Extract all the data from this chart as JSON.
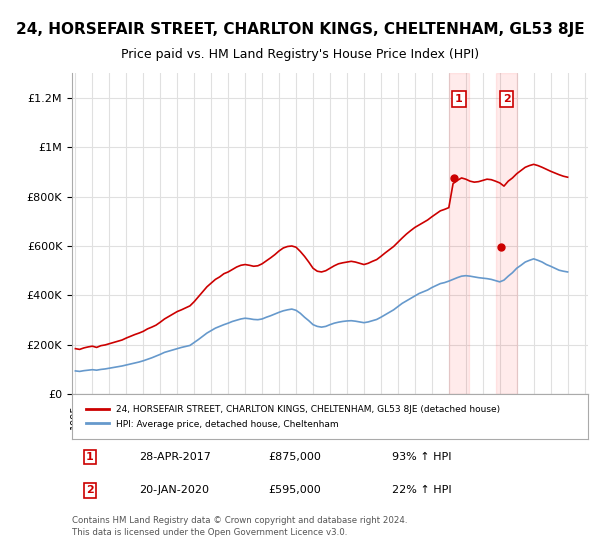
{
  "title": "24, HORSEFAIR STREET, CHARLTON KINGS, CHELTENHAM, GL53 8JE",
  "subtitle": "Price paid vs. HM Land Registry's House Price Index (HPI)",
  "xlabel": "",
  "ylabel": "",
  "yticks": [
    0,
    200000,
    400000,
    600000,
    800000,
    1000000,
    1200000
  ],
  "ytick_labels": [
    "£0",
    "£200K",
    "£400K",
    "£600K",
    "£800K",
    "£1M",
    "£1.2M"
  ],
  "ylim": [
    0,
    1300000
  ],
  "title_fontsize": 11,
  "subtitle_fontsize": 9,
  "background_color": "#ffffff",
  "plot_bg_color": "#ffffff",
  "grid_color": "#e0e0e0",
  "red_color": "#cc0000",
  "blue_color": "#6699cc",
  "marker1_date_x": 2017.32,
  "marker1_price": 875000,
  "marker1_label": "1",
  "marker2_date_x": 2020.05,
  "marker2_price": 595000,
  "marker2_label": "2",
  "legend1_text": "24, HORSEFAIR STREET, CHARLTON KINGS, CHELTENHAM, GL53 8JE (detached house)",
  "legend2_text": "HPI: Average price, detached house, Cheltenham",
  "table_row1": [
    "1",
    "28-APR-2017",
    "£875,000",
    "93% ↑ HPI"
  ],
  "table_row2": [
    "2",
    "20-JAN-2020",
    "£595,000",
    "22% ↑ HPI"
  ],
  "footnote": "Contains HM Land Registry data © Crown copyright and database right 2024.\nThis data is licensed under the Open Government Licence v3.0.",
  "xtick_years": [
    1995,
    1996,
    1997,
    1998,
    1999,
    2000,
    2001,
    2002,
    2003,
    2004,
    2005,
    2006,
    2007,
    2008,
    2009,
    2010,
    2011,
    2012,
    2013,
    2014,
    2015,
    2016,
    2017,
    2018,
    2019,
    2020,
    2021,
    2022,
    2023,
    2024,
    2025
  ],
  "red_x": [
    1995.0,
    1995.25,
    1995.5,
    1995.75,
    1996.0,
    1996.25,
    1996.5,
    1996.75,
    1997.0,
    1997.25,
    1997.5,
    1997.75,
    1998.0,
    1998.25,
    1998.5,
    1998.75,
    1999.0,
    1999.25,
    1999.5,
    1999.75,
    2000.0,
    2000.25,
    2000.5,
    2000.75,
    2001.0,
    2001.25,
    2001.5,
    2001.75,
    2002.0,
    2002.25,
    2002.5,
    2002.75,
    2003.0,
    2003.25,
    2003.5,
    2003.75,
    2004.0,
    2004.25,
    2004.5,
    2004.75,
    2005.0,
    2005.25,
    2005.5,
    2005.75,
    2006.0,
    2006.25,
    2006.5,
    2006.75,
    2007.0,
    2007.25,
    2007.5,
    2007.75,
    2008.0,
    2008.25,
    2008.5,
    2008.75,
    2009.0,
    2009.25,
    2009.5,
    2009.75,
    2010.0,
    2010.25,
    2010.5,
    2010.75,
    2011.0,
    2011.25,
    2011.5,
    2011.75,
    2012.0,
    2012.25,
    2012.5,
    2012.75,
    2013.0,
    2013.25,
    2013.5,
    2013.75,
    2014.0,
    2014.25,
    2014.5,
    2014.75,
    2015.0,
    2015.25,
    2015.5,
    2015.75,
    2016.0,
    2016.25,
    2016.5,
    2016.75,
    2017.0,
    2017.25,
    2017.5,
    2017.75,
    2018.0,
    2018.25,
    2018.5,
    2018.75,
    2019.0,
    2019.25,
    2019.5,
    2019.75,
    2020.0,
    2020.25,
    2020.5,
    2020.75,
    2021.0,
    2021.25,
    2021.5,
    2021.75,
    2022.0,
    2022.25,
    2022.5,
    2022.75,
    2023.0,
    2023.25,
    2023.5,
    2023.75,
    2024.0
  ],
  "red_y": [
    185000,
    182000,
    188000,
    192000,
    195000,
    190000,
    197000,
    200000,
    205000,
    210000,
    215000,
    220000,
    228000,
    235000,
    242000,
    248000,
    255000,
    265000,
    272000,
    280000,
    292000,
    305000,
    315000,
    325000,
    335000,
    342000,
    350000,
    358000,
    375000,
    395000,
    415000,
    435000,
    450000,
    465000,
    475000,
    488000,
    495000,
    505000,
    515000,
    522000,
    525000,
    522000,
    518000,
    520000,
    528000,
    540000,
    552000,
    565000,
    580000,
    592000,
    598000,
    600000,
    595000,
    578000,
    558000,
    535000,
    510000,
    498000,
    495000,
    500000,
    510000,
    520000,
    528000,
    532000,
    535000,
    538000,
    535000,
    530000,
    525000,
    530000,
    538000,
    545000,
    558000,
    572000,
    585000,
    598000,
    615000,
    632000,
    648000,
    662000,
    675000,
    685000,
    695000,
    705000,
    718000,
    730000,
    742000,
    748000,
    755000,
    852000,
    865000,
    875000,
    870000,
    862000,
    858000,
    860000,
    865000,
    870000,
    868000,
    862000,
    855000,
    842000,
    862000,
    875000,
    892000,
    905000,
    918000,
    925000,
    930000,
    925000,
    918000,
    910000,
    902000,
    895000,
    888000,
    882000,
    878000
  ],
  "blue_x": [
    1995.0,
    1995.25,
    1995.5,
    1995.75,
    1996.0,
    1996.25,
    1996.5,
    1996.75,
    1997.0,
    1997.25,
    1997.5,
    1997.75,
    1998.0,
    1998.25,
    1998.5,
    1998.75,
    1999.0,
    1999.25,
    1999.5,
    1999.75,
    2000.0,
    2000.25,
    2000.5,
    2000.75,
    2001.0,
    2001.25,
    2001.5,
    2001.75,
    2002.0,
    2002.25,
    2002.5,
    2002.75,
    2003.0,
    2003.25,
    2003.5,
    2003.75,
    2004.0,
    2004.25,
    2004.5,
    2004.75,
    2005.0,
    2005.25,
    2005.5,
    2005.75,
    2006.0,
    2006.25,
    2006.5,
    2006.75,
    2007.0,
    2007.25,
    2007.5,
    2007.75,
    2008.0,
    2008.25,
    2008.5,
    2008.75,
    2009.0,
    2009.25,
    2009.5,
    2009.75,
    2010.0,
    2010.25,
    2010.5,
    2010.75,
    2011.0,
    2011.25,
    2011.5,
    2011.75,
    2012.0,
    2012.25,
    2012.5,
    2012.75,
    2013.0,
    2013.25,
    2013.5,
    2013.75,
    2014.0,
    2014.25,
    2014.5,
    2014.75,
    2015.0,
    2015.25,
    2015.5,
    2015.75,
    2016.0,
    2016.25,
    2016.5,
    2016.75,
    2017.0,
    2017.25,
    2017.5,
    2017.75,
    2018.0,
    2018.25,
    2018.5,
    2018.75,
    2019.0,
    2019.25,
    2019.5,
    2019.75,
    2020.0,
    2020.25,
    2020.5,
    2020.75,
    2021.0,
    2021.25,
    2021.5,
    2021.75,
    2022.0,
    2022.25,
    2022.5,
    2022.75,
    2023.0,
    2023.25,
    2023.5,
    2023.75,
    2024.0
  ],
  "blue_y": [
    95000,
    93000,
    96000,
    98000,
    100000,
    98000,
    101000,
    103000,
    106000,
    109000,
    112000,
    115000,
    119000,
    123000,
    127000,
    131000,
    136000,
    142000,
    148000,
    155000,
    162000,
    170000,
    175000,
    180000,
    185000,
    190000,
    194000,
    198000,
    210000,
    222000,
    235000,
    248000,
    258000,
    268000,
    275000,
    282000,
    288000,
    295000,
    300000,
    305000,
    308000,
    306000,
    303000,
    302000,
    305000,
    312000,
    318000,
    325000,
    332000,
    338000,
    342000,
    345000,
    340000,
    328000,
    312000,
    298000,
    282000,
    275000,
    272000,
    275000,
    282000,
    288000,
    292000,
    295000,
    297000,
    298000,
    296000,
    293000,
    290000,
    293000,
    298000,
    303000,
    312000,
    322000,
    332000,
    342000,
    355000,
    368000,
    378000,
    388000,
    398000,
    408000,
    415000,
    422000,
    432000,
    440000,
    448000,
    452000,
    458000,
    465000,
    472000,
    478000,
    480000,
    478000,
    475000,
    472000,
    470000,
    468000,
    465000,
    460000,
    455000,
    462000,
    478000,
    492000,
    510000,
    522000,
    535000,
    542000,
    548000,
    542000,
    535000,
    525000,
    518000,
    510000,
    502000,
    498000,
    495000
  ]
}
